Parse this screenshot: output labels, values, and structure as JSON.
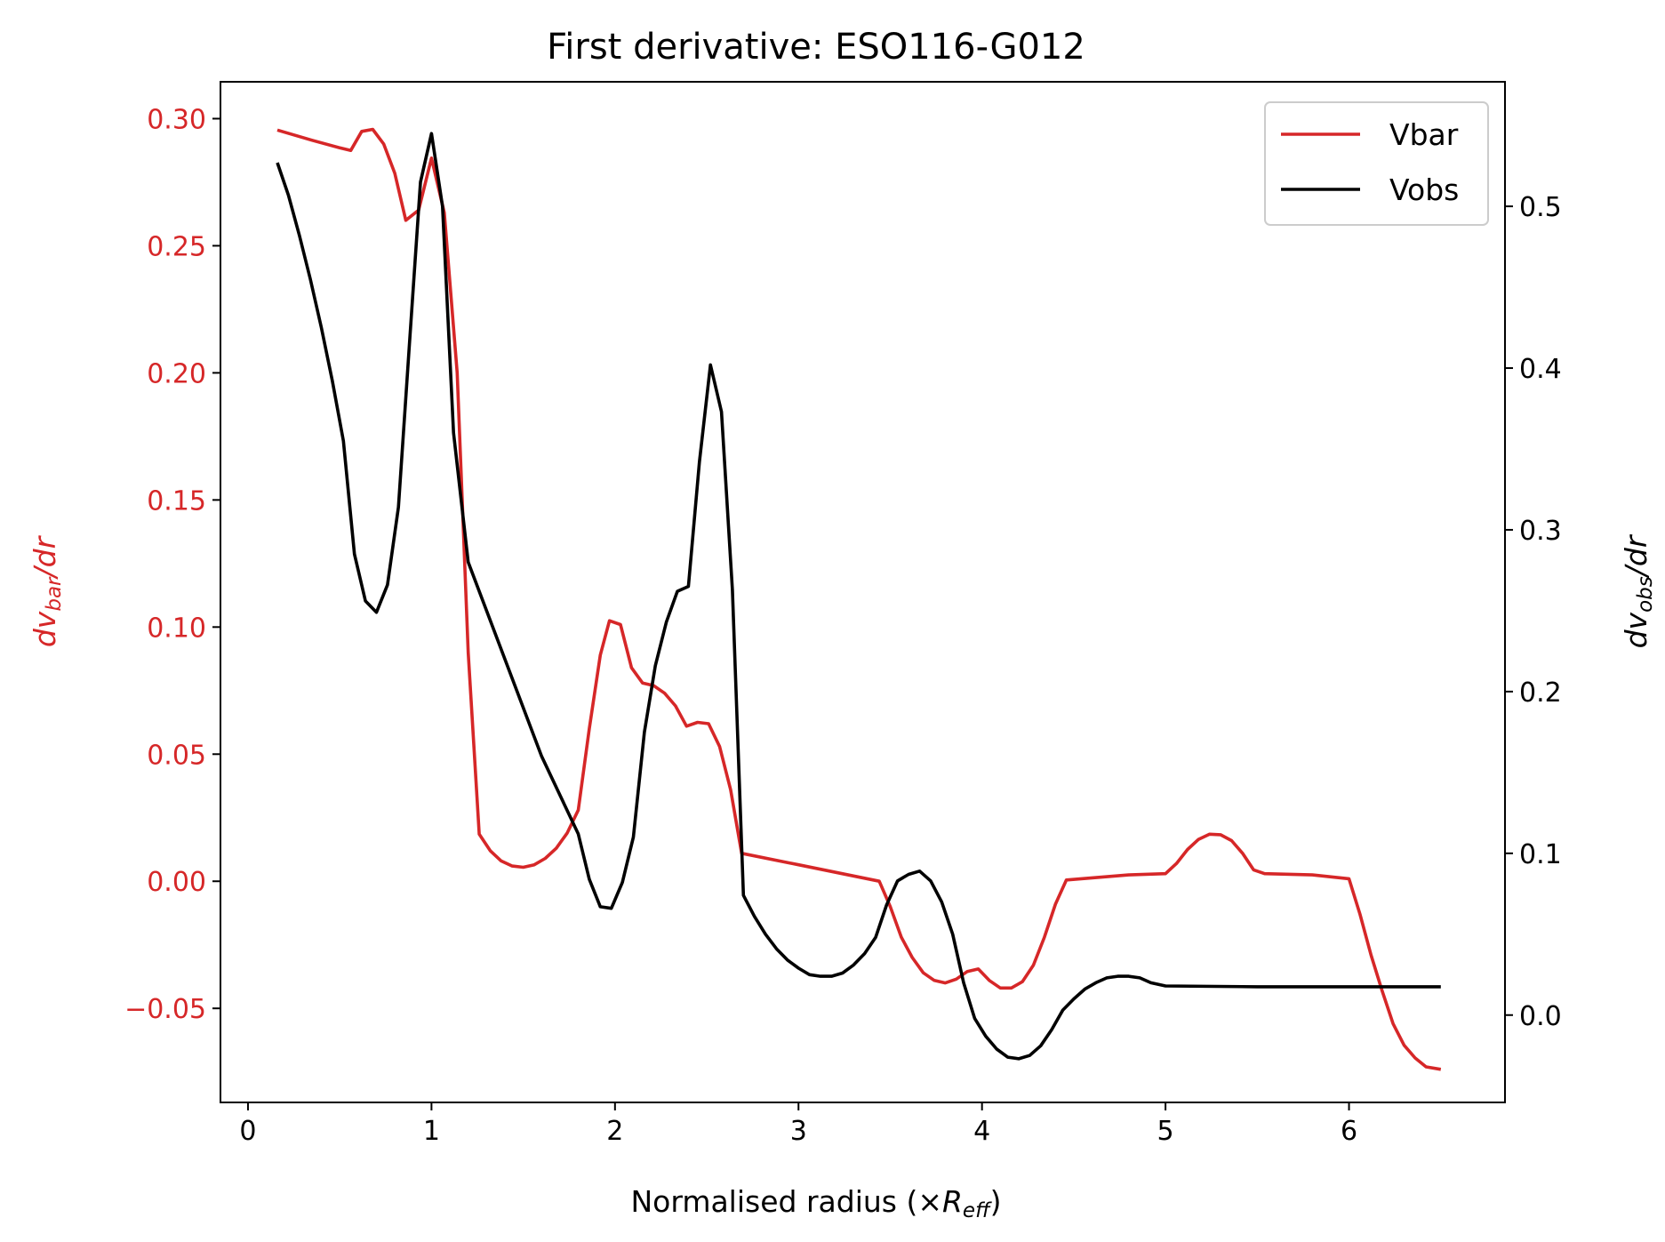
{
  "chart_data": {
    "type": "line",
    "title": "First derivative: ESO116-G012",
    "xlabel": {
      "main": "Normalised radius (×",
      "var": "R",
      "sub": "eff",
      "end": ")"
    },
    "ylabel_left": {
      "d": "dv",
      "sub": "bar",
      "end": "/dr"
    },
    "ylabel_right": {
      "d": "dv",
      "sub": "obs",
      "end": "/dr"
    },
    "xlim": [
      -0.15,
      6.85
    ],
    "ylim_left": [
      -0.087,
      0.3145
    ],
    "ylim_right": [
      -0.054,
      0.577
    ],
    "x_ticks": [
      "0",
      "1",
      "2",
      "3",
      "4",
      "5",
      "6"
    ],
    "y_left_ticks": [
      "0.30",
      "0.25",
      "0.20",
      "0.15",
      "0.10",
      "0.05",
      "0.00",
      "−0.05"
    ],
    "y_right_ticks": [
      "0.5",
      "0.4",
      "0.3",
      "0.2",
      "0.1",
      "0.0"
    ],
    "colors": {
      "vbar": "#d62728",
      "vobs": "#000000",
      "left_axis": "#d62728",
      "right_axis": "#000000"
    },
    "legend": {
      "placement": "upper right",
      "entries": [
        "Vbar",
        "Vobs"
      ]
    },
    "series": [
      {
        "name": "Vbar",
        "axis": "left",
        "points": [
          [
            0.16,
            0.2955
          ],
          [
            0.35,
            0.2915
          ],
          [
            0.5,
            0.2885
          ],
          [
            0.56,
            0.2875
          ],
          [
            0.62,
            0.295
          ],
          [
            0.68,
            0.2958
          ],
          [
            0.74,
            0.29
          ],
          [
            0.8,
            0.2785
          ],
          [
            0.86,
            0.26
          ],
          [
            0.93,
            0.264
          ],
          [
            1.0,
            0.2845
          ],
          [
            1.07,
            0.263
          ],
          [
            1.14,
            0.2
          ],
          [
            1.2,
            0.09
          ],
          [
            1.26,
            0.0185
          ],
          [
            1.32,
            0.012
          ],
          [
            1.38,
            0.008
          ],
          [
            1.44,
            0.006
          ],
          [
            1.5,
            0.0055
          ],
          [
            1.56,
            0.0065
          ],
          [
            1.62,
            0.009
          ],
          [
            1.68,
            0.013
          ],
          [
            1.74,
            0.019
          ],
          [
            1.8,
            0.028
          ],
          [
            1.86,
            0.06
          ],
          [
            1.92,
            0.089
          ],
          [
            1.97,
            0.1025
          ],
          [
            2.03,
            0.101
          ],
          [
            2.09,
            0.084
          ],
          [
            2.15,
            0.078
          ],
          [
            2.21,
            0.077
          ],
          [
            2.27,
            0.074
          ],
          [
            2.33,
            0.069
          ],
          [
            2.39,
            0.061
          ],
          [
            2.45,
            0.0625
          ],
          [
            2.51,
            0.062
          ],
          [
            2.57,
            0.053
          ],
          [
            2.63,
            0.036
          ],
          [
            2.69,
            0.011
          ],
          [
            3.0,
            0.0065
          ],
          [
            3.44,
            0.0
          ],
          [
            3.5,
            -0.01
          ],
          [
            3.56,
            -0.022
          ],
          [
            3.62,
            -0.03
          ],
          [
            3.68,
            -0.036
          ],
          [
            3.74,
            -0.039
          ],
          [
            3.8,
            -0.04
          ],
          [
            3.86,
            -0.0385
          ],
          [
            3.92,
            -0.0355
          ],
          [
            3.98,
            -0.0345
          ],
          [
            4.04,
            -0.039
          ],
          [
            4.1,
            -0.042
          ],
          [
            4.16,
            -0.042
          ],
          [
            4.22,
            -0.0395
          ],
          [
            4.28,
            -0.033
          ],
          [
            4.34,
            -0.022
          ],
          [
            4.4,
            -0.009
          ],
          [
            4.46,
            0.0005
          ],
          [
            4.8,
            0.0025
          ],
          [
            5.0,
            0.003
          ],
          [
            5.06,
            0.007
          ],
          [
            5.12,
            0.0125
          ],
          [
            5.18,
            0.0165
          ],
          [
            5.24,
            0.0185
          ],
          [
            5.3,
            0.0183
          ],
          [
            5.36,
            0.016
          ],
          [
            5.42,
            0.011
          ],
          [
            5.48,
            0.0045
          ],
          [
            5.54,
            0.003
          ],
          [
            5.8,
            0.0025
          ],
          [
            6.0,
            0.001
          ],
          [
            6.06,
            -0.013
          ],
          [
            6.12,
            -0.029
          ],
          [
            6.18,
            -0.043
          ],
          [
            6.24,
            -0.056
          ],
          [
            6.3,
            -0.0645
          ],
          [
            6.36,
            -0.0695
          ],
          [
            6.42,
            -0.073
          ],
          [
            6.5,
            -0.074
          ]
        ]
      },
      {
        "name": "Vobs",
        "axis": "right",
        "points": [
          [
            0.16,
            0.527
          ],
          [
            0.22,
            0.507
          ],
          [
            0.28,
            0.482
          ],
          [
            0.34,
            0.455
          ],
          [
            0.4,
            0.425
          ],
          [
            0.46,
            0.392
          ],
          [
            0.52,
            0.355
          ],
          [
            0.58,
            0.285
          ],
          [
            0.64,
            0.256
          ],
          [
            0.7,
            0.249
          ],
          [
            0.76,
            0.266
          ],
          [
            0.82,
            0.314
          ],
          [
            0.88,
            0.415
          ],
          [
            0.94,
            0.515
          ],
          [
            1.0,
            0.545
          ],
          [
            1.06,
            0.5
          ],
          [
            1.12,
            0.36
          ],
          [
            1.2,
            0.28
          ],
          [
            1.6,
            0.16
          ],
          [
            1.8,
            0.112
          ],
          [
            1.86,
            0.084
          ],
          [
            1.92,
            0.067
          ],
          [
            1.98,
            0.066
          ],
          [
            2.04,
            0.082
          ],
          [
            2.1,
            0.11
          ],
          [
            2.16,
            0.175
          ],
          [
            2.22,
            0.216
          ],
          [
            2.28,
            0.243
          ],
          [
            2.34,
            0.262
          ],
          [
            2.4,
            0.265
          ],
          [
            2.46,
            0.342
          ],
          [
            2.52,
            0.402
          ],
          [
            2.58,
            0.373
          ],
          [
            2.64,
            0.263
          ],
          [
            2.7,
            0.074
          ],
          [
            2.76,
            0.061
          ],
          [
            2.82,
            0.05
          ],
          [
            2.88,
            0.041
          ],
          [
            2.94,
            0.034
          ],
          [
            3.0,
            0.029
          ],
          [
            3.06,
            0.025
          ],
          [
            3.12,
            0.024
          ],
          [
            3.18,
            0.024
          ],
          [
            3.24,
            0.026
          ],
          [
            3.3,
            0.031
          ],
          [
            3.36,
            0.038
          ],
          [
            3.42,
            0.048
          ],
          [
            3.48,
            0.068
          ],
          [
            3.54,
            0.083
          ],
          [
            3.6,
            0.087
          ],
          [
            3.66,
            0.089
          ],
          [
            3.72,
            0.083
          ],
          [
            3.78,
            0.07
          ],
          [
            3.84,
            0.05
          ],
          [
            3.9,
            0.02
          ],
          [
            3.96,
            -0.002
          ],
          [
            4.02,
            -0.013
          ],
          [
            4.08,
            -0.021
          ],
          [
            4.14,
            -0.026
          ],
          [
            4.2,
            -0.027
          ],
          [
            4.26,
            -0.025
          ],
          [
            4.32,
            -0.019
          ],
          [
            4.38,
            -0.009
          ],
          [
            4.44,
            0.003
          ],
          [
            4.5,
            0.01
          ],
          [
            4.56,
            0.016
          ],
          [
            4.62,
            0.02
          ],
          [
            4.68,
            0.023
          ],
          [
            4.74,
            0.024
          ],
          [
            4.8,
            0.024
          ],
          [
            4.86,
            0.023
          ],
          [
            4.92,
            0.02
          ],
          [
            5.0,
            0.018
          ],
          [
            5.5,
            0.0175
          ],
          [
            6.0,
            0.0175
          ],
          [
            6.5,
            0.0175
          ]
        ]
      }
    ]
  }
}
